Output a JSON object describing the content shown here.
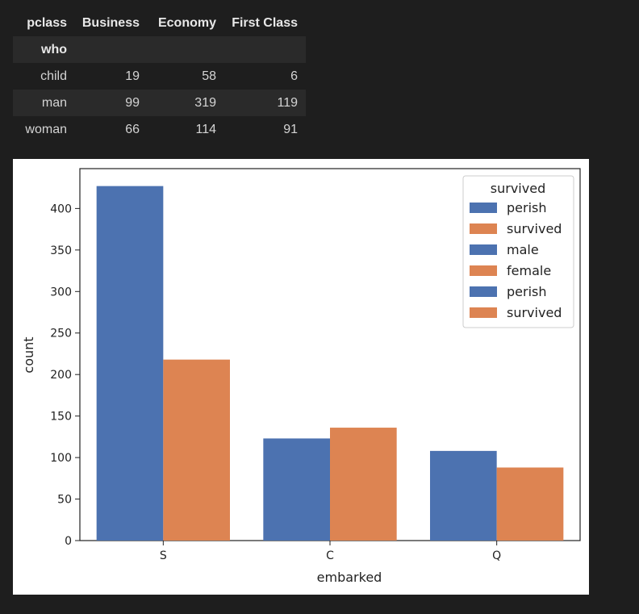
{
  "table": {
    "columns_label": "pclass",
    "index_label": "who",
    "columns": [
      "Business",
      "Economy",
      "First Class"
    ],
    "rows": [
      {
        "label": "child",
        "values": [
          "19",
          "58",
          "6"
        ]
      },
      {
        "label": "man",
        "values": [
          "99",
          "319",
          "119"
        ]
      },
      {
        "label": "woman",
        "values": [
          "66",
          "114",
          "91"
        ]
      }
    ]
  },
  "chart_data": {
    "type": "bar",
    "categories": [
      "S",
      "C",
      "Q"
    ],
    "series": [
      {
        "name": "perish",
        "values": [
          427,
          123,
          108
        ],
        "color": "#4c72b0"
      },
      {
        "name": "survived",
        "values": [
          218,
          136,
          88
        ],
        "color": "#dd8452"
      }
    ],
    "xlabel": "embarked",
    "ylabel": "count",
    "ylim": [
      0,
      448
    ],
    "yticks": [
      0,
      50,
      100,
      150,
      200,
      250,
      300,
      350,
      400
    ],
    "grid": false,
    "legend": {
      "title": "survived",
      "placement": "top-right",
      "entries": [
        {
          "label": "perish",
          "color": "#4c72b0"
        },
        {
          "label": "survived",
          "color": "#dd8452"
        },
        {
          "label": "male",
          "color": "#4c72b0"
        },
        {
          "label": "female",
          "color": "#dd8452"
        },
        {
          "label": "perish",
          "color": "#4c72b0"
        },
        {
          "label": "survived",
          "color": "#dd8452"
        }
      ]
    }
  }
}
